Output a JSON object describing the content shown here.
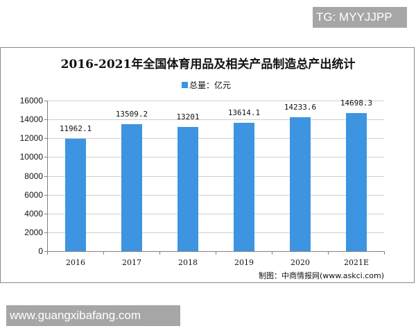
{
  "badges": {
    "top_right": "TG: MYYJJPP",
    "bottom_left": "www.guangxibafang.com"
  },
  "chart": {
    "title": "2016-2021年全国体育用品及相关产品制造总产出统计",
    "legend_label": "总量：亿元",
    "source": "制图：中商情报网(www.askci.com)",
    "bar_color": "#3d94e0"
  },
  "chart_data": {
    "type": "bar",
    "title": "2016-2021年全国体育用品及相关产品制造总产出统计",
    "xlabel": "",
    "ylabel": "",
    "categories": [
      "2016",
      "2017",
      "2018",
      "2019",
      "2020",
      "2021E"
    ],
    "series": [
      {
        "name": "总量：亿元",
        "values": [
          11962.1,
          13509.2,
          13201,
          13614.1,
          14233.6,
          14698.3
        ],
        "labels": [
          "11962.1",
          "13509.2",
          "13201",
          "13614.1",
          "14233.6",
          "14698.3"
        ],
        "color": "#3d94e0"
      }
    ],
    "ylim": [
      0,
      16000
    ],
    "yticks": [
      "0",
      "2000",
      "4000",
      "6000",
      "8000",
      "10000",
      "12000",
      "14000",
      "16000"
    ],
    "grid": true,
    "legend_position": "top"
  }
}
